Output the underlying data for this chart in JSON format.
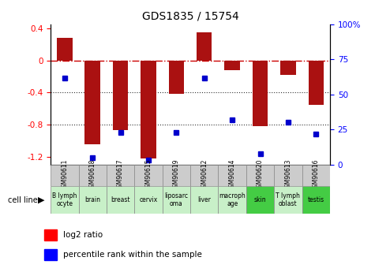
{
  "title": "GDS1835 / 15754",
  "gsm_labels": [
    "GSM90611",
    "GSM90618",
    "GSM90617",
    "GSM90615",
    "GSM90619",
    "GSM90612",
    "GSM90614",
    "GSM90620",
    "GSM90613",
    "GSM90616"
  ],
  "cell_lines": [
    "B lymph\nocyte",
    "brain",
    "breast",
    "cervix",
    "liposarc\noma",
    "liver",
    "macroph\nage",
    "skin",
    "T lymph\noblast",
    "testis"
  ],
  "cell_line_colors": [
    "#c8f0c8",
    "#c8f0c8",
    "#c8f0c8",
    "#c8f0c8",
    "#c8f0c8",
    "#c8f0c8",
    "#c8f0c8",
    "#44cc44",
    "#c8f0c8",
    "#44cc44"
  ],
  "log2_ratio": [
    0.28,
    -1.05,
    -0.87,
    -1.22,
    -0.42,
    0.35,
    -0.12,
    -0.82,
    -0.18,
    -0.55
  ],
  "percentile_rank": [
    62,
    5,
    23,
    3,
    23,
    62,
    32,
    8,
    30,
    22
  ],
  "ylim_left": [
    -1.3,
    0.45
  ],
  "ylim_right": [
    0,
    100
  ],
  "left_yticks": [
    0.4,
    0.0,
    -0.4,
    -0.8,
    -1.2
  ],
  "right_yticks": [
    0,
    25,
    50,
    75,
    100
  ],
  "bar_color": "#aa1111",
  "dot_color": "#0000cc",
  "dashed_line_color": "#cc0000",
  "grid_color": "#333333",
  "header_bg": "#cccccc",
  "cell_line_bg_default": "#c8f0c8",
  "cell_line_bg_highlight": "#44cc44"
}
